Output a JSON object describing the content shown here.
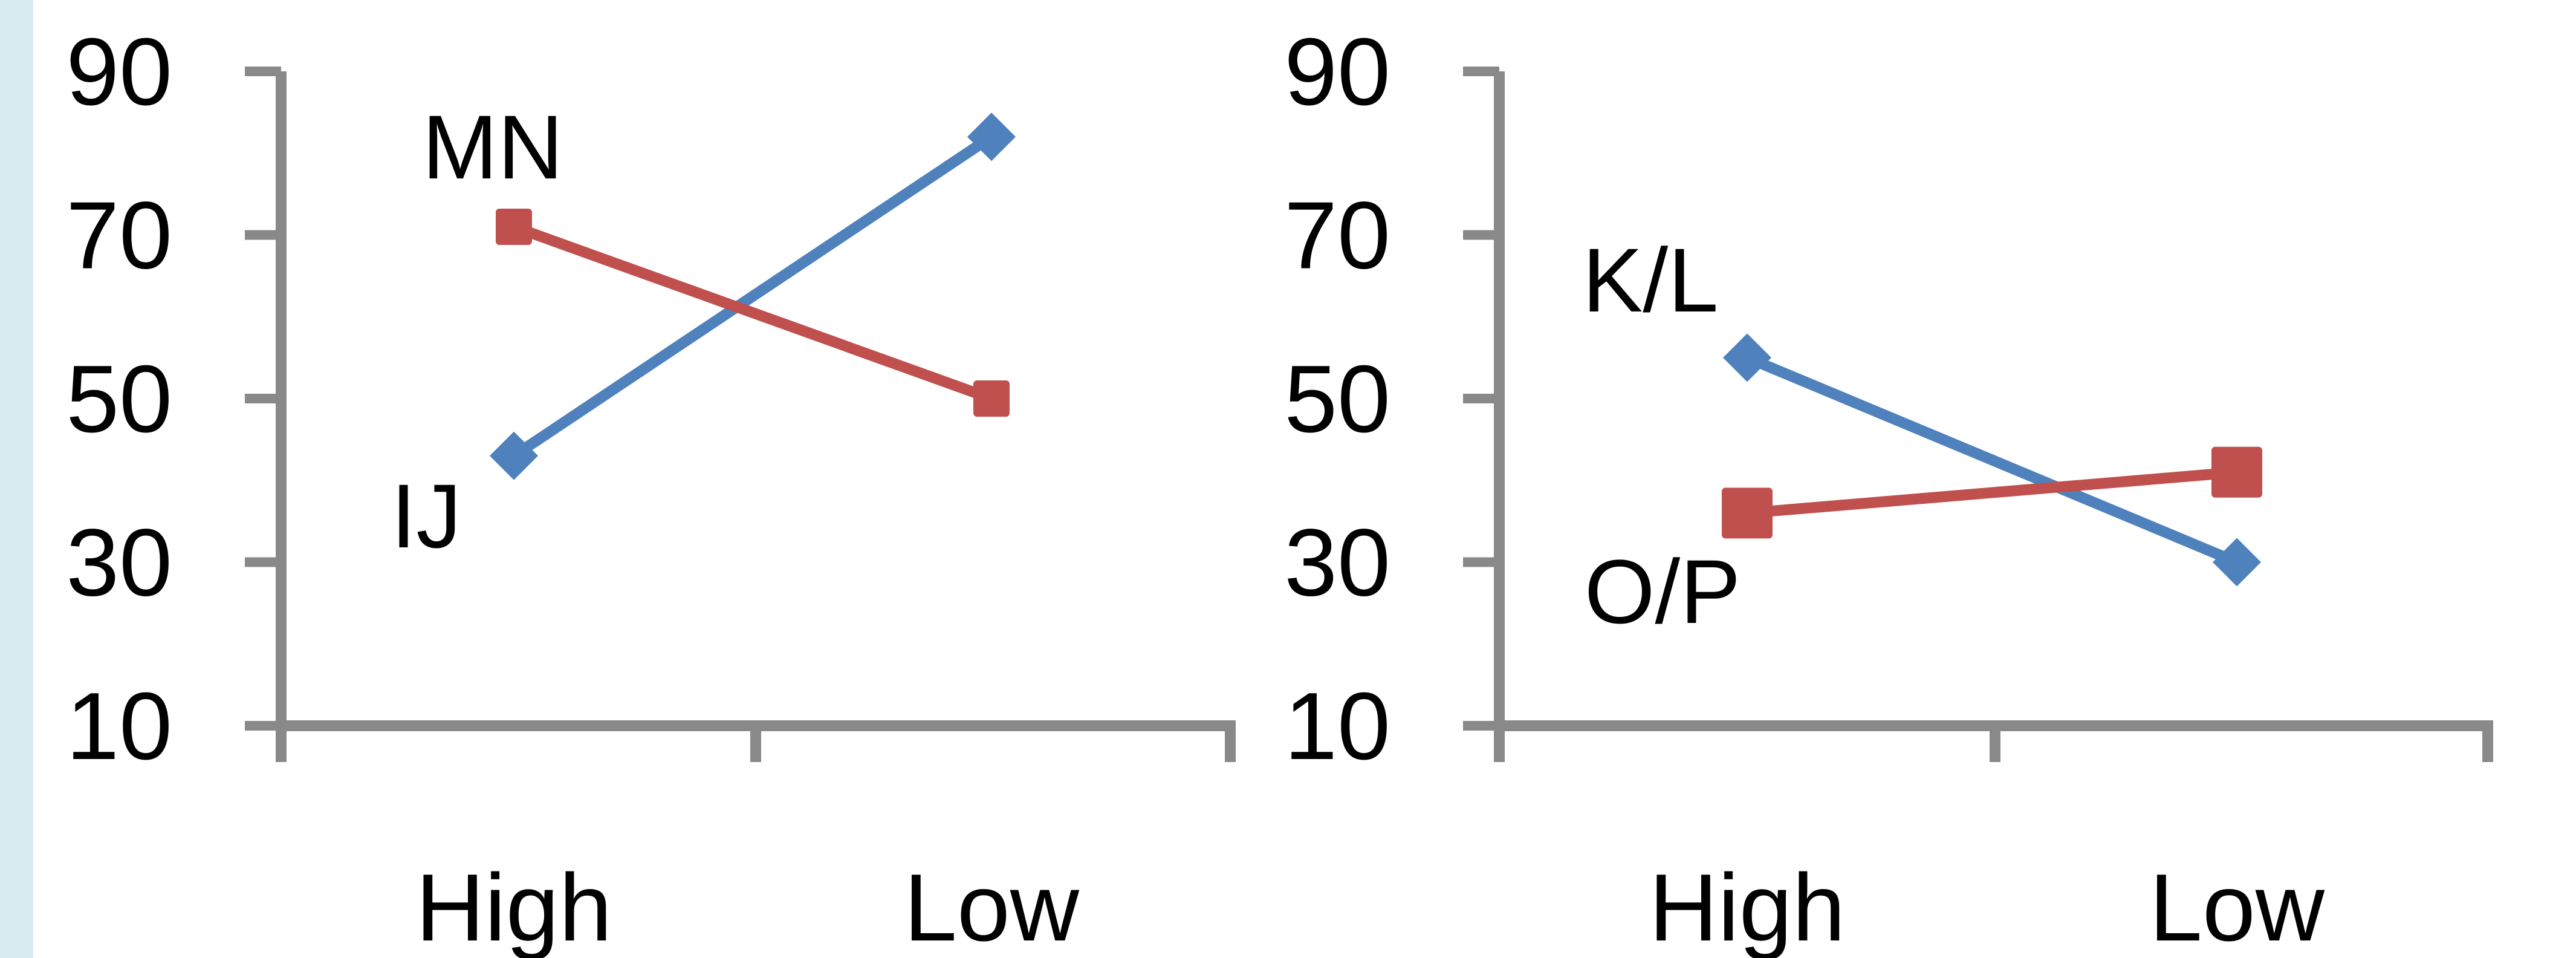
{
  "colors": {
    "series_blue": "#4f81bd",
    "series_red": "#c0504d",
    "axis_gray": "#898989",
    "sidebar_strip": "#daeaf1"
  },
  "chart_data": [
    {
      "type": "line",
      "categories": [
        "High",
        "Low"
      ],
      "ylim": [
        10,
        90
      ],
      "yticks": [
        "10",
        "30",
        "50",
        "70",
        "90"
      ],
      "grid": false,
      "series": [
        {
          "name": "IJ",
          "values": [
            43,
            82
          ],
          "color": "#4f81bd",
          "marker": "diamond"
        },
        {
          "name": "MN",
          "values": [
            71,
            50
          ],
          "color": "#c0504d",
          "marker": "square"
        }
      ]
    },
    {
      "type": "line",
      "categories": [
        "High",
        "Low"
      ],
      "ylim": [
        10,
        90
      ],
      "yticks": [
        "10",
        "30",
        "50",
        "70",
        "90"
      ],
      "grid": false,
      "series": [
        {
          "name": "K/L",
          "values": [
            55,
            30
          ],
          "color": "#4f81bd",
          "marker": "diamond"
        },
        {
          "name": "O/P",
          "values": [
            36,
            41
          ],
          "color": "#c0504d",
          "marker": "square"
        }
      ]
    }
  ]
}
